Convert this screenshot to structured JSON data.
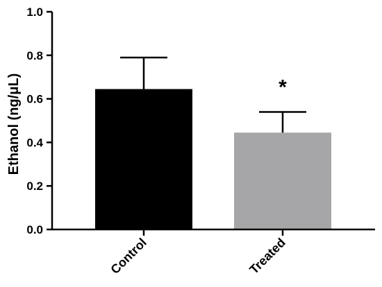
{
  "chart_data": {
    "type": "bar",
    "categories": [
      "Control",
      "Treated"
    ],
    "values": [
      0.645,
      0.445
    ],
    "error_upper": [
      0.79,
      0.54
    ],
    "bar_colors": [
      "#000000",
      "#a6a6a8"
    ],
    "ylabel": "Ethanol (ng/μL)",
    "xlabel": "",
    "ylim": [
      0,
      1.0
    ],
    "yticks": [
      0.0,
      0.2,
      0.4,
      0.6,
      0.8,
      1.0
    ],
    "ytick_labels": [
      "0.0",
      "0.2",
      "0.4",
      "0.6",
      "0.8",
      "1.0"
    ],
    "annotations": [
      {
        "category": "Treated",
        "text": "*"
      }
    ],
    "grid": false,
    "legend": "none"
  }
}
